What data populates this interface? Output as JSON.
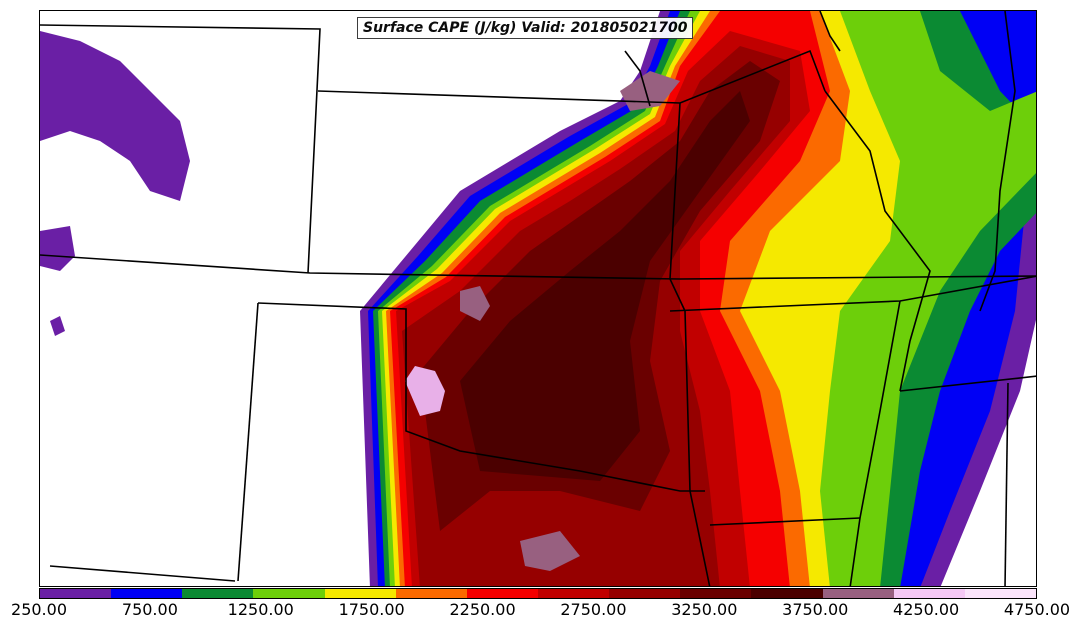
{
  "title": "Surface CAPE (J/kg) Valid: 201805021700",
  "colorbar": {
    "colors": [
      "#6a1fa5",
      "#0000f5",
      "#0b8a33",
      "#6dcf0a",
      "#f5e900",
      "#fb6a00",
      "#f50000",
      "#c10000",
      "#960000",
      "#6a0000",
      "#4b0000",
      "#986080",
      "#f5c8f5",
      "#fbe4fb"
    ],
    "tick_labels": [
      "250.00",
      "750.00",
      "1250.00",
      "1750.00",
      "2250.00",
      "2750.00",
      "3250.00",
      "3750.00",
      "4250.00",
      "4750.00"
    ]
  }
}
